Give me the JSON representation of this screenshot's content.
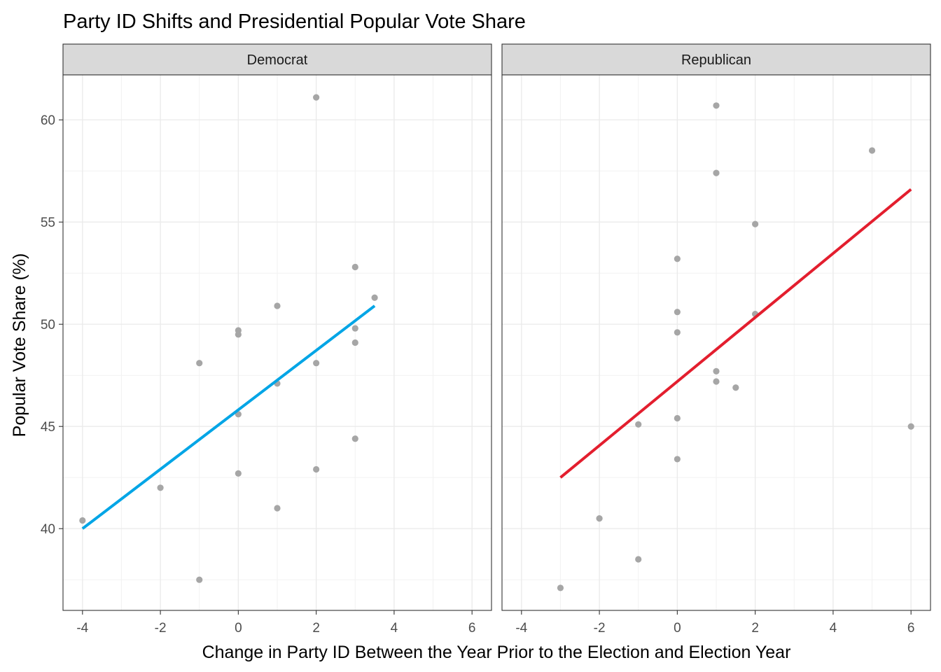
{
  "chart_data": {
    "type": "scatter",
    "title": "Party ID Shifts and Presidential Popular Vote Share",
    "xlabel": "Change in Party ID Between the Year Prior to the Election and Election Year",
    "ylabel": "Popular Vote Share (%)",
    "xlim": [
      -4.5,
      6.5
    ],
    "ylim": [
      36.0,
      62.2
    ],
    "x_ticks": [
      -4,
      -2,
      0,
      2,
      4,
      6
    ],
    "x_tick_labels": [
      "-4",
      "-2",
      "0",
      "2",
      "4",
      "6"
    ],
    "y_ticks": [
      40,
      45,
      50,
      55,
      60
    ],
    "y_tick_labels": [
      "40",
      "45",
      "50",
      "55",
      "60"
    ],
    "grid": true,
    "point_color": "#A6A6A6",
    "panels": [
      {
        "name": "Democrat",
        "line_color": "#00A5E6",
        "fit_line": {
          "x": [
            -4,
            3.5
          ],
          "y": [
            40.0,
            50.9
          ]
        },
        "points": [
          {
            "x": -4,
            "y": 40.4
          },
          {
            "x": -2,
            "y": 42.0
          },
          {
            "x": -1,
            "y": 48.1
          },
          {
            "x": -1,
            "y": 37.5
          },
          {
            "x": 0,
            "y": 49.7
          },
          {
            "x": 0,
            "y": 49.5
          },
          {
            "x": 0,
            "y": 45.6
          },
          {
            "x": 0,
            "y": 42.7
          },
          {
            "x": 1,
            "y": 50.9
          },
          {
            "x": 1,
            "y": 47.1
          },
          {
            "x": 1,
            "y": 41.0
          },
          {
            "x": 2,
            "y": 61.1
          },
          {
            "x": 2,
            "y": 48.1
          },
          {
            "x": 2,
            "y": 42.9
          },
          {
            "x": 3,
            "y": 52.8
          },
          {
            "x": 3,
            "y": 49.8
          },
          {
            "x": 3,
            "y": 49.1
          },
          {
            "x": 3,
            "y": 44.4
          },
          {
            "x": 3.5,
            "y": 51.3
          }
        ]
      },
      {
        "name": "Republican",
        "line_color": "#E31E2E",
        "fit_line": {
          "x": [
            -3,
            6
          ],
          "y": [
            42.5,
            56.6
          ]
        },
        "points": [
          {
            "x": -3,
            "y": 37.1
          },
          {
            "x": -2,
            "y": 40.5
          },
          {
            "x": -1,
            "y": 38.5
          },
          {
            "x": -1,
            "y": 45.1
          },
          {
            "x": 0,
            "y": 53.2
          },
          {
            "x": 0,
            "y": 50.6
          },
          {
            "x": 0,
            "y": 49.6
          },
          {
            "x": 0,
            "y": 45.4
          },
          {
            "x": 0,
            "y": 43.4
          },
          {
            "x": 1,
            "y": 60.7
          },
          {
            "x": 1,
            "y": 57.4
          },
          {
            "x": 1,
            "y": 47.7
          },
          {
            "x": 1,
            "y": 47.2
          },
          {
            "x": 1.5,
            "y": 46.9
          },
          {
            "x": 2,
            "y": 54.9
          },
          {
            "x": 2,
            "y": 50.5
          },
          {
            "x": 5,
            "y": 58.5
          },
          {
            "x": 6,
            "y": 45.0
          }
        ]
      }
    ]
  }
}
